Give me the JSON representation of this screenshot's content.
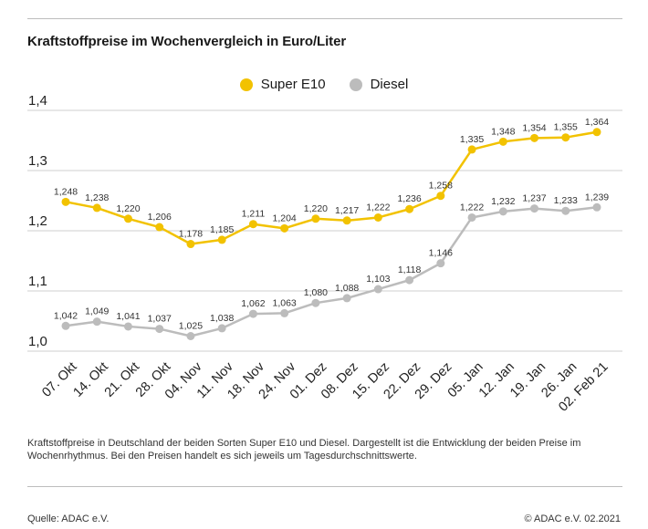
{
  "title": "Kraftstoffpreise im Wochenvergleich in Euro/Liter",
  "note": "Kraftstoffpreise in Deutschland der beiden Sorten Super E10 und Diesel. Dargestellt ist die Entwicklung der beiden Preise im Wochenrhythmus. Bei den Preisen handelt es sich jeweils um Tagesdurchschnittswerte.",
  "source": "Quelle: ADAC e.V.",
  "copyright": "© ADAC e.V. 02.2021",
  "chart_data": {
    "type": "line",
    "title": "Kraftstoffpreise im Wochenvergleich in Euro/Liter",
    "xlabel": "",
    "ylabel": "",
    "ylim": [
      1.0,
      1.4
    ],
    "yticks": [
      1.0,
      1.1,
      1.2,
      1.3,
      1.4
    ],
    "ytick_labels": [
      "1,0",
      "1,1",
      "1,2",
      "1,3",
      "1,4"
    ],
    "grid": true,
    "legend_position": "top-center",
    "categories": [
      "07. Okt",
      "14. Okt",
      "21. Okt",
      "28. Okt",
      "04. Nov",
      "11. Nov",
      "18. Nov",
      "24. Nov",
      "01. Dez",
      "08. Dez",
      "15. Dez",
      "22. Dez",
      "29. Dez",
      "05. Jan",
      "12. Jan",
      "19. Jan",
      "26. Jan",
      "02. Feb 21"
    ],
    "series": [
      {
        "name": "Super E10",
        "color": "#f2c200",
        "values": [
          1.248,
          1.238,
          1.22,
          1.206,
          1.178,
          1.185,
          1.211,
          1.204,
          1.22,
          1.217,
          1.222,
          1.236,
          1.258,
          1.335,
          1.348,
          1.354,
          1.355,
          1.364
        ],
        "labels": [
          "1,248",
          "1,238",
          "1,220",
          "1,206",
          "1,178",
          "1,185",
          "1,211",
          "1,204",
          "1,220",
          "1,217",
          "1,222",
          "1,236",
          "1,258",
          "1,335",
          "1,348",
          "1,354",
          "1,355",
          "1,364"
        ]
      },
      {
        "name": "Diesel",
        "color": "#bcbcbc",
        "values": [
          1.042,
          1.049,
          1.041,
          1.037,
          1.025,
          1.038,
          1.062,
          1.063,
          1.08,
          1.088,
          1.103,
          1.118,
          1.146,
          1.222,
          1.232,
          1.237,
          1.233,
          1.239
        ],
        "labels": [
          "1,042",
          "1,049",
          "1,041",
          "1,037",
          "1,025",
          "1,038",
          "1,062",
          "1,063",
          "1,080",
          "1,088",
          "1,103",
          "1,118",
          "1,146",
          "1,222",
          "1,232",
          "1,237",
          "1,233",
          "1,239"
        ]
      }
    ]
  }
}
